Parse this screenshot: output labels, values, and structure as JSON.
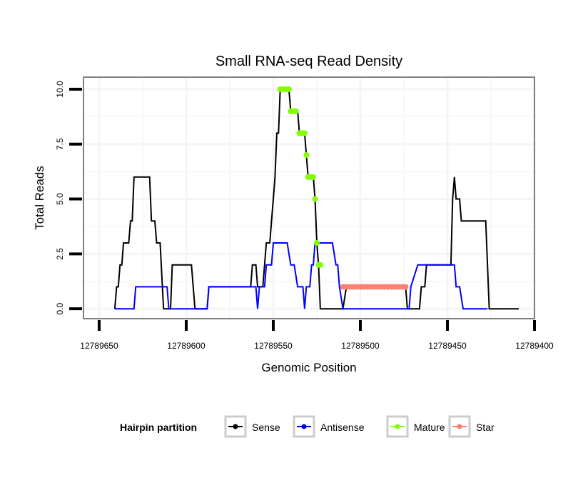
{
  "chart_data": {
    "type": "line",
    "title": "Small RNA-seq Read Density",
    "xlabel": "Genomic Position",
    "ylabel": "Total Reads",
    "xlim": [
      12789659,
      12789400
    ],
    "x_reversed": true,
    "ylim": [
      -0.45,
      10.55
    ],
    "x_ticks": [
      12789650,
      12789600,
      12789550,
      12789500,
      12789450,
      12789400
    ],
    "x_tick_labels": [
      "12789650",
      "12789600",
      "12789550",
      "12789500",
      "12789450",
      "12789400"
    ],
    "y_ticks": [
      0,
      2.5,
      5,
      7.5,
      10
    ],
    "y_tick_labels": [
      "0.0",
      "2.5",
      "5.0",
      "7.5",
      "10.0"
    ],
    "grid": true,
    "legend": {
      "title": "Hairpin partition",
      "position": "bottom",
      "entries": [
        {
          "name": "Sense",
          "color": "#000000"
        },
        {
          "name": "Antisense",
          "color": "#0000ff"
        },
        {
          "name": "Mature",
          "color": "#7fff00"
        },
        {
          "name": "Star",
          "color": "#fa8072"
        }
      ]
    },
    "series": [
      {
        "name": "Sense",
        "color": "#000000",
        "style": "line",
        "points": [
          [
            12789641,
            0
          ],
          [
            12789640,
            1
          ],
          [
            12789639,
            1
          ],
          [
            12789638,
            2
          ],
          [
            12789637,
            2
          ],
          [
            12789636,
            3
          ],
          [
            12789633,
            3
          ],
          [
            12789632,
            4
          ],
          [
            12789631,
            4
          ],
          [
            12789630,
            6
          ],
          [
            12789621,
            6
          ],
          [
            12789620,
            4
          ],
          [
            12789618,
            4
          ],
          [
            12789617,
            3
          ],
          [
            12789615,
            3
          ],
          [
            12789613,
            0
          ],
          [
            12789609,
            0
          ],
          [
            12789608,
            2
          ],
          [
            12789602,
            2
          ],
          [
            12789597,
            2
          ],
          [
            12789595,
            0
          ],
          [
            12789588,
            0
          ],
          [
            12789587,
            1
          ],
          [
            12789571,
            1
          ],
          [
            12789563,
            1
          ],
          [
            12789562,
            2
          ],
          [
            12789560,
            2
          ],
          [
            12789559,
            1
          ],
          [
            12789556,
            1
          ],
          [
            12789555,
            2
          ],
          [
            12789554,
            3
          ],
          [
            12789552,
            3
          ],
          [
            12789551,
            4
          ],
          [
            12789550,
            5
          ],
          [
            12789549,
            6
          ],
          [
            12789548,
            8
          ],
          [
            12789547,
            8
          ],
          [
            12789546,
            10
          ],
          [
            12789541,
            10
          ],
          [
            12789540,
            9
          ],
          [
            12789536,
            9
          ],
          [
            12789535,
            8
          ],
          [
            12789532,
            8
          ],
          [
            12789531,
            7
          ],
          [
            12789530,
            6
          ],
          [
            12789527,
            6
          ],
          [
            12789526,
            5
          ],
          [
            12789525,
            3
          ],
          [
            12789524,
            2
          ],
          [
            12789523,
            0
          ],
          [
            12789510,
            0
          ],
          [
            12789508,
            1
          ],
          [
            12789474,
            1
          ],
          [
            12789473,
            0
          ],
          [
            12789466,
            0
          ],
          [
            12789465,
            1
          ],
          [
            12789463,
            1
          ],
          [
            12789462,
            2
          ],
          [
            12789448,
            2
          ],
          [
            12789447,
            5
          ],
          [
            12789446,
            6
          ],
          [
            12789445,
            5
          ],
          [
            12789443,
            5
          ],
          [
            12789442,
            4
          ],
          [
            12789428,
            4
          ],
          [
            12789426,
            0
          ],
          [
            12789409,
            0
          ]
        ]
      },
      {
        "name": "Antisense",
        "color": "#0000ff",
        "style": "line",
        "points": [
          [
            12789641,
            0
          ],
          [
            12789630,
            0
          ],
          [
            12789629,
            1
          ],
          [
            12789611,
            1
          ],
          [
            12789610,
            0
          ],
          [
            12789588,
            0
          ],
          [
            12789587,
            1
          ],
          [
            12789560,
            1
          ],
          [
            12789559,
            0
          ],
          [
            12789558,
            1
          ],
          [
            12789555,
            1
          ],
          [
            12789554,
            2
          ],
          [
            12789551,
            2
          ],
          [
            12789550,
            3
          ],
          [
            12789542,
            3
          ],
          [
            12789540,
            2
          ],
          [
            12789538,
            2
          ],
          [
            12789536,
            1
          ],
          [
            12789533,
            1
          ],
          [
            12789532,
            0
          ],
          [
            12789531,
            1
          ],
          [
            12789529,
            1
          ],
          [
            12789528,
            2
          ],
          [
            12789527,
            2
          ],
          [
            12789526,
            3
          ],
          [
            12789516,
            3
          ],
          [
            12789514,
            2
          ],
          [
            12789513,
            2
          ],
          [
            12789512,
            1
          ],
          [
            12789510,
            0
          ],
          [
            12789472,
            0
          ],
          [
            12789471,
            1
          ],
          [
            12789467,
            2
          ],
          [
            12789446,
            2
          ],
          [
            12789445,
            1
          ],
          [
            12789443,
            1
          ],
          [
            12789441,
            0
          ],
          [
            12789427,
            0
          ]
        ]
      },
      {
        "name": "Mature",
        "color": "#7fff00",
        "style": "points",
        "points": [
          [
            12789546,
            10
          ],
          [
            12789545,
            10
          ],
          [
            12789544,
            10
          ],
          [
            12789543,
            10
          ],
          [
            12789542,
            10
          ],
          [
            12789541,
            10
          ],
          [
            12789540,
            9
          ],
          [
            12789539,
            9
          ],
          [
            12789538,
            9
          ],
          [
            12789537,
            9
          ],
          [
            12789535,
            8
          ],
          [
            12789534,
            8
          ],
          [
            12789533,
            8
          ],
          [
            12789532,
            8
          ],
          [
            12789531,
            7
          ],
          [
            12789530,
            6
          ],
          [
            12789529,
            6
          ],
          [
            12789528,
            6
          ],
          [
            12789527,
            6
          ],
          [
            12789526,
            5
          ],
          [
            12789525,
            3
          ],
          [
            12789524,
            2
          ],
          [
            12789523,
            2
          ]
        ]
      },
      {
        "name": "Star",
        "color": "#fa8072",
        "style": "points",
        "points": [
          [
            12789510,
            1
          ],
          [
            12789508,
            1
          ],
          [
            12789506,
            1
          ],
          [
            12789504,
            1
          ],
          [
            12789502,
            1
          ],
          [
            12789500,
            1
          ],
          [
            12789498,
            1
          ],
          [
            12789496,
            1
          ],
          [
            12789494,
            1
          ],
          [
            12789492,
            1
          ],
          [
            12789490,
            1
          ],
          [
            12789488,
            1
          ],
          [
            12789486,
            1
          ],
          [
            12789484,
            1
          ],
          [
            12789482,
            1
          ],
          [
            12789480,
            1
          ],
          [
            12789478,
            1
          ],
          [
            12789476,
            1
          ],
          [
            12789474,
            1
          ]
        ]
      }
    ]
  },
  "colors": {
    "panel_border": "#7f7f7f",
    "grid": "#f5f5f5",
    "legend_key_border": "#cccccc"
  }
}
